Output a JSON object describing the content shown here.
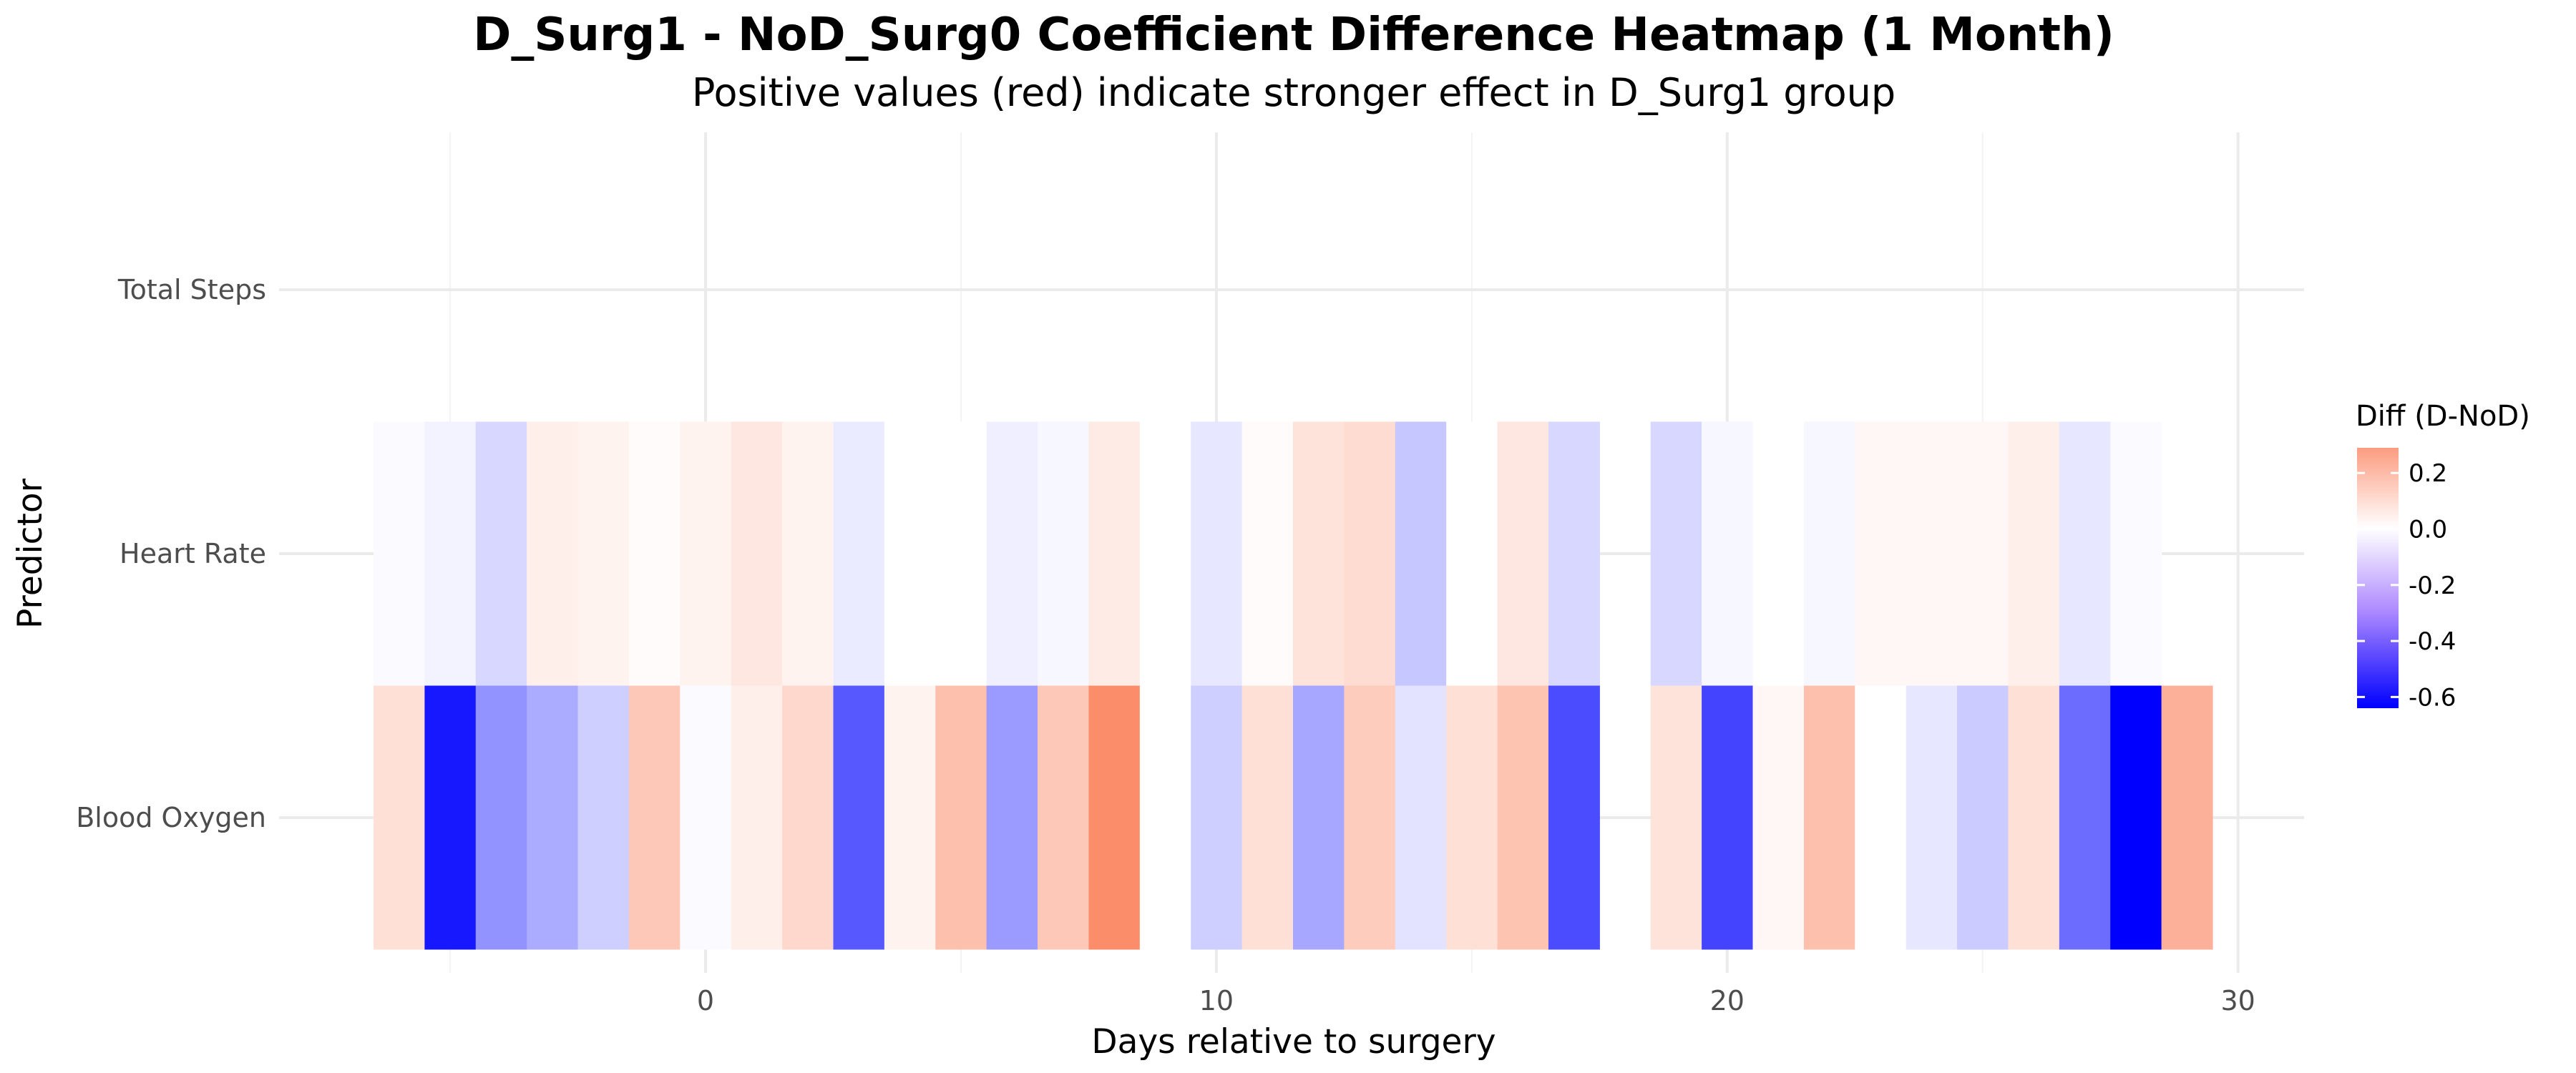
{
  "chart_data": {
    "type": "heatmap",
    "title": "D_Surg1 - NoD_Surg0 Coefficient Difference Heatmap (1 Month)",
    "subtitle": "Positive values (red) indicate stronger effect in D_Surg1 group",
    "xlabel": "Days relative to surgery",
    "ylabel": "Predictor",
    "xlim": [
      -6.5,
      29.5
    ],
    "x_ticks": [
      0,
      10,
      20,
      30
    ],
    "rows": [
      "Total Steps",
      "Heart Rate",
      "Blood Oxygen"
    ],
    "x": [
      -6,
      -5,
      -4,
      -3,
      -2,
      -1,
      0,
      1,
      2,
      3,
      4,
      5,
      6,
      7,
      8,
      9,
      10,
      11,
      12,
      13,
      14,
      15,
      16,
      17,
      18,
      19,
      20,
      21,
      22,
      23,
      24,
      25,
      26,
      27,
      28,
      29
    ],
    "values": {
      "Total Steps": [
        null,
        null,
        null,
        null,
        null,
        null,
        null,
        null,
        null,
        null,
        null,
        null,
        null,
        null,
        null,
        null,
        null,
        null,
        null,
        null,
        null,
        null,
        null,
        null,
        null,
        null,
        null,
        null,
        null,
        null,
        null,
        null,
        null,
        null,
        null,
        null
      ],
      "Heart Rate": [
        -0.01,
        -0.03,
        -0.1,
        0.04,
        0.03,
        0.01,
        0.03,
        0.06,
        0.03,
        -0.05,
        0.0,
        0.0,
        -0.04,
        -0.02,
        0.05,
        0.0,
        -0.06,
        0.01,
        0.07,
        0.09,
        -0.14,
        0.0,
        0.06,
        -0.1,
        null,
        -0.1,
        -0.02,
        0.0,
        -0.02,
        0.02,
        0.02,
        0.02,
        0.04,
        -0.06,
        -0.01,
        null
      ],
      "Blood Oxygen": [
        0.08,
        -0.58,
        -0.27,
        -0.21,
        -0.12,
        0.14,
        -0.01,
        0.04,
        0.1,
        -0.42,
        0.03,
        0.16,
        -0.25,
        0.14,
        0.29,
        0.0,
        -0.12,
        0.08,
        -0.22,
        0.13,
        -0.07,
        0.08,
        0.15,
        -0.45,
        null,
        0.07,
        -0.47,
        0.02,
        0.16,
        0.0,
        -0.06,
        -0.13,
        0.08,
        -0.37,
        -0.64,
        0.2
      ]
    },
    "grid": true,
    "legend": {
      "title": "Diff (D-NoD)",
      "placement": "right",
      "ticks": [
        0.2,
        0.0,
        -0.2,
        -0.4,
        -0.6
      ],
      "tick_labels": [
        "0.2",
        "0.0",
        "-0.2",
        "-0.4",
        "-0.6"
      ],
      "limits": [
        -0.64,
        0.29
      ],
      "colors": {
        "low": "#0000ff",
        "mid": "#ffffff",
        "high": "#fc8d6b"
      }
    }
  }
}
